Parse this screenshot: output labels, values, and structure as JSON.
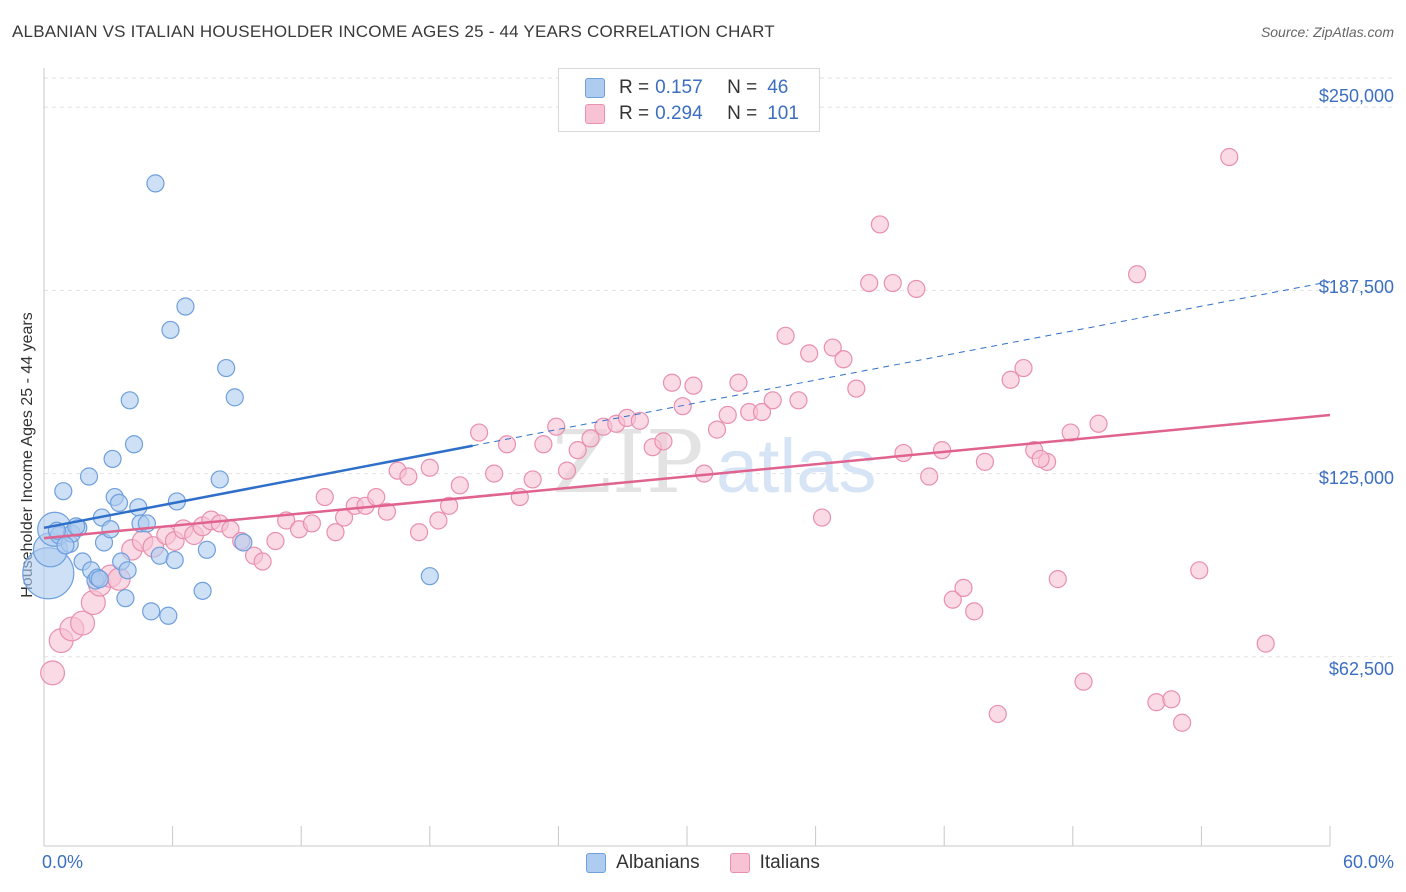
{
  "header": {
    "title": "ALBANIAN VS ITALIAN HOUSEHOLDER INCOME AGES 25 - 44 YEARS CORRELATION CHART",
    "source": "Source: ZipAtlas.com"
  },
  "legend": {
    "rows": [
      {
        "r_label": "R =",
        "r_value": "0.157",
        "n_label": "N =",
        "n_value": "46"
      },
      {
        "r_label": "R =",
        "r_value": "0.294",
        "n_label": "N =",
        "n_value": "101"
      }
    ],
    "bottom": [
      "Albanians",
      "Italians"
    ]
  },
  "colors": {
    "albanian_fill": "#aecbf0",
    "albanian_stroke": "#6f9fdc",
    "albanian_line": "#2f6fc9",
    "italian_fill": "#f7c2d4",
    "italian_stroke": "#e98fb0",
    "italian_line": "#e0628f",
    "tick_label": "#3c6fc0"
  },
  "watermark": {
    "zip": "ZIP",
    "atlas": "atlas"
  },
  "chart_data": {
    "type": "scatter",
    "title": "ALBANIAN VS ITALIAN HOUSEHOLDER INCOME AGES 25 - 44 YEARS CORRELATION CHART",
    "xlabel": "",
    "ylabel": "Householder Income Ages 25 - 44 years",
    "xlim": [
      0,
      60
    ],
    "ylim": [
      0,
      262000
    ],
    "x_tick_labels": [
      "0.0%",
      "60.0%"
    ],
    "y_ticks": [
      62500,
      125000,
      187500,
      250000
    ],
    "y_tick_labels": [
      "$62,500",
      "$125,000",
      "$187,500",
      "$250,000"
    ],
    "grid": true,
    "legend_position": "top-center",
    "series": [
      {
        "name": "Albanians",
        "r": 0.157,
        "n": 46,
        "trend": {
          "x0": 0,
          "y0": 106500,
          "x1": 20,
          "y1": 134500,
          "dashed_to_x": 60,
          "dashed_to_y": 190500
        },
        "points": [
          [
            0.2,
            91000,
            3
          ],
          [
            0.3,
            99000,
            2
          ],
          [
            0.5,
            106000,
            2
          ],
          [
            0.7,
            104000,
            1
          ],
          [
            0.9,
            119000,
            1
          ],
          [
            1.2,
            101000,
            1
          ],
          [
            1.3,
            104500,
            1
          ],
          [
            1.6,
            106500,
            1
          ],
          [
            1.8,
            95000,
            1
          ],
          [
            2.1,
            124000,
            1
          ],
          [
            2.2,
            92000,
            1
          ],
          [
            2.4,
            88500,
            1
          ],
          [
            2.5,
            89500,
            1
          ],
          [
            2.7,
            110000,
            1
          ],
          [
            2.8,
            101500,
            1
          ],
          [
            3.1,
            106000,
            1
          ],
          [
            3.2,
            130000,
            1
          ],
          [
            3.3,
            117000,
            1
          ],
          [
            3.5,
            115000,
            1
          ],
          [
            3.6,
            95000,
            1
          ],
          [
            3.8,
            82500,
            1
          ],
          [
            3.9,
            92000,
            1
          ],
          [
            4.0,
            150000,
            1
          ],
          [
            4.2,
            135000,
            1
          ],
          [
            4.4,
            113500,
            1
          ],
          [
            4.5,
            108000,
            1
          ],
          [
            4.8,
            108000,
            1
          ],
          [
            5.0,
            78000,
            1
          ],
          [
            5.2,
            224000,
            1
          ],
          [
            5.4,
            97000,
            1
          ],
          [
            5.8,
            76500,
            1
          ],
          [
            5.9,
            174000,
            1
          ],
          [
            6.1,
            95500,
            1
          ],
          [
            6.2,
            115500,
            1
          ],
          [
            6.6,
            182000,
            1
          ],
          [
            7.4,
            85000,
            1
          ],
          [
            7.6,
            99000,
            1
          ],
          [
            8.2,
            123000,
            1
          ],
          [
            8.5,
            161000,
            1
          ],
          [
            8.9,
            151000,
            1
          ],
          [
            9.3,
            101500,
            1
          ],
          [
            18.0,
            90000,
            1
          ],
          [
            0.6,
            105500,
            1
          ],
          [
            1.0,
            100500,
            1
          ],
          [
            2.6,
            89000,
            1
          ],
          [
            1.5,
            107000,
            1
          ]
        ]
      },
      {
        "name": "Italians",
        "r": 0.294,
        "n": 101,
        "trend": {
          "x0": 0,
          "y0": 103000,
          "x1": 60,
          "y1": 145000
        },
        "points": [
          [
            0.4,
            57000,
            1.4
          ],
          [
            0.8,
            68000,
            1.4
          ],
          [
            1.3,
            72000,
            1.4
          ],
          [
            1.8,
            74000,
            1.4
          ],
          [
            2.3,
            81000,
            1.4
          ],
          [
            2.6,
            87000,
            1.3
          ],
          [
            3.1,
            90000,
            1.3
          ],
          [
            3.5,
            89000,
            1.3
          ],
          [
            4.1,
            99000,
            1.2
          ],
          [
            4.6,
            102000,
            1.2
          ],
          [
            5.1,
            100000,
            1.2
          ],
          [
            5.7,
            104000,
            1.1
          ],
          [
            6.1,
            102000,
            1.1
          ],
          [
            6.5,
            106000,
            1.1
          ],
          [
            7.0,
            104000,
            1.1
          ],
          [
            7.4,
            107000,
            1.1
          ],
          [
            7.8,
            109000,
            1.1
          ],
          [
            8.2,
            108000,
            1
          ],
          [
            8.7,
            106000,
            1
          ],
          [
            9.2,
            102000,
            1
          ],
          [
            9.8,
            97000,
            1
          ],
          [
            10.2,
            95000,
            1
          ],
          [
            10.8,
            102000,
            1
          ],
          [
            11.3,
            109000,
            1
          ],
          [
            11.9,
            106000,
            1
          ],
          [
            12.5,
            108000,
            1
          ],
          [
            13.1,
            117000,
            1
          ],
          [
            13.6,
            105000,
            1
          ],
          [
            14.0,
            110000,
            1
          ],
          [
            14.5,
            114000,
            1
          ],
          [
            15.0,
            114000,
            1
          ],
          [
            15.5,
            117000,
            1
          ],
          [
            16.0,
            112000,
            1
          ],
          [
            16.5,
            126000,
            1
          ],
          [
            17.0,
            124000,
            1
          ],
          [
            17.5,
            105000,
            1
          ],
          [
            18.0,
            127000,
            1
          ],
          [
            18.4,
            109000,
            1
          ],
          [
            18.9,
            114000,
            1
          ],
          [
            19.4,
            121000,
            1
          ],
          [
            20.3,
            139000,
            1
          ],
          [
            21.0,
            125000,
            1
          ],
          [
            21.6,
            135000,
            1
          ],
          [
            22.2,
            117000,
            1
          ],
          [
            22.8,
            123000,
            1
          ],
          [
            23.3,
            135000,
            1
          ],
          [
            23.9,
            141000,
            1
          ],
          [
            24.4,
            126000,
            1
          ],
          [
            24.9,
            133000,
            1
          ],
          [
            25.5,
            137000,
            1
          ],
          [
            26.1,
            141000,
            1
          ],
          [
            26.7,
            142000,
            1
          ],
          [
            27.2,
            144000,
            1
          ],
          [
            27.8,
            143000,
            1
          ],
          [
            28.4,
            134000,
            1
          ],
          [
            28.9,
            136000,
            1
          ],
          [
            29.3,
            156000,
            1
          ],
          [
            29.8,
            148000,
            1
          ],
          [
            30.3,
            155000,
            1
          ],
          [
            30.8,
            125000,
            1
          ],
          [
            31.4,
            140000,
            1
          ],
          [
            31.9,
            145000,
            1
          ],
          [
            32.4,
            156000,
            1
          ],
          [
            32.9,
            146000,
            1
          ],
          [
            33.5,
            146000,
            1
          ],
          [
            34.0,
            150000,
            1
          ],
          [
            34.6,
            172000,
            1
          ],
          [
            35.2,
            150000,
            1
          ],
          [
            35.7,
            166000,
            1
          ],
          [
            36.3,
            110000,
            1
          ],
          [
            36.8,
            168000,
            1
          ],
          [
            37.3,
            164000,
            1
          ],
          [
            37.9,
            154000,
            1
          ],
          [
            38.5,
            190000,
            1
          ],
          [
            39.0,
            210000,
            1
          ],
          [
            39.6,
            190000,
            1
          ],
          [
            40.1,
            132000,
            1
          ],
          [
            40.7,
            188000,
            1
          ],
          [
            41.3,
            124000,
            1
          ],
          [
            41.9,
            133000,
            1
          ],
          [
            42.4,
            82000,
            1
          ],
          [
            42.9,
            86000,
            1
          ],
          [
            43.4,
            78000,
            1
          ],
          [
            43.9,
            129000,
            1
          ],
          [
            44.5,
            43000,
            1
          ],
          [
            45.1,
            157000,
            1
          ],
          [
            45.7,
            161000,
            1
          ],
          [
            46.2,
            133000,
            1
          ],
          [
            46.8,
            129000,
            1
          ],
          [
            47.3,
            89000,
            1
          ],
          [
            47.9,
            139000,
            1
          ],
          [
            48.5,
            54000,
            1
          ],
          [
            49.2,
            142000,
            1
          ],
          [
            51.0,
            193000,
            1
          ],
          [
            51.9,
            47000,
            1
          ],
          [
            52.6,
            48000,
            1
          ],
          [
            53.1,
            40000,
            1
          ],
          [
            53.9,
            92000,
            1
          ],
          [
            55.3,
            233000,
            1
          ],
          [
            57.0,
            67000,
            1
          ],
          [
            46.5,
            130000,
            1
          ]
        ]
      }
    ]
  }
}
